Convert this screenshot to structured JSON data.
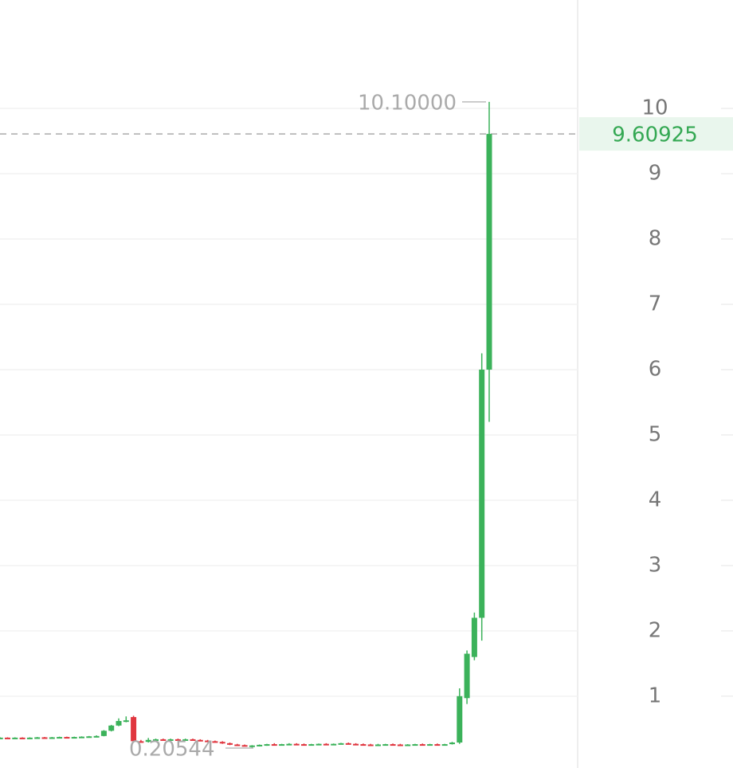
{
  "chart_data": {
    "type": "candlestick",
    "open": [
      0.36,
      0.365,
      0.36,
      0.365,
      0.36,
      0.365,
      0.37,
      0.365,
      0.37,
      0.375,
      0.37,
      0.375,
      0.38,
      0.385,
      0.39,
      0.47,
      0.55,
      0.62,
      0.68,
      0.31,
      0.3,
      0.33,
      0.34,
      0.33,
      0.34,
      0.335,
      0.34,
      0.33,
      0.32,
      0.31,
      0.3,
      0.28,
      0.26,
      0.25,
      0.24,
      0.245,
      0.255,
      0.265,
      0.26,
      0.265,
      0.27,
      0.265,
      0.26,
      0.265,
      0.27,
      0.265,
      0.27,
      0.28,
      0.27,
      0.265,
      0.26,
      0.255,
      0.26,
      0.265,
      0.26,
      0.255,
      0.26,
      0.265,
      0.26,
      0.265,
      0.26,
      0.265,
      0.29,
      0.97,
      1.6,
      2.2,
      6.0
    ],
    "high": [
      0.37,
      0.37,
      0.37,
      0.37,
      0.37,
      0.375,
      0.375,
      0.375,
      0.38,
      0.38,
      0.38,
      0.385,
      0.39,
      0.4,
      0.48,
      0.56,
      0.66,
      0.69,
      0.7,
      0.33,
      0.36,
      0.35,
      0.35,
      0.35,
      0.35,
      0.35,
      0.35,
      0.34,
      0.33,
      0.32,
      0.31,
      0.29,
      0.27,
      0.26,
      0.25,
      0.26,
      0.27,
      0.28,
      0.27,
      0.28,
      0.28,
      0.275,
      0.27,
      0.275,
      0.28,
      0.275,
      0.285,
      0.29,
      0.28,
      0.275,
      0.27,
      0.27,
      0.27,
      0.275,
      0.27,
      0.265,
      0.27,
      0.275,
      0.27,
      0.275,
      0.27,
      0.3,
      1.12,
      1.7,
      2.28,
      6.25,
      10.1
    ],
    "low": [
      0.355,
      0.355,
      0.355,
      0.36,
      0.355,
      0.36,
      0.36,
      0.36,
      0.365,
      0.37,
      0.365,
      0.37,
      0.375,
      0.38,
      0.385,
      0.46,
      0.54,
      0.6,
      0.3,
      0.29,
      0.29,
      0.32,
      0.32,
      0.32,
      0.33,
      0.32,
      0.33,
      0.31,
      0.3,
      0.29,
      0.27,
      0.25,
      0.24,
      0.23,
      0.20544,
      0.23,
      0.24,
      0.25,
      0.25,
      0.255,
      0.26,
      0.255,
      0.25,
      0.255,
      0.26,
      0.255,
      0.26,
      0.265,
      0.26,
      0.25,
      0.25,
      0.245,
      0.25,
      0.255,
      0.25,
      0.245,
      0.25,
      0.255,
      0.25,
      0.255,
      0.25,
      0.26,
      0.27,
      0.88,
      1.55,
      1.85,
      5.2
    ],
    "close": [
      0.365,
      0.36,
      0.365,
      0.36,
      0.365,
      0.37,
      0.365,
      0.37,
      0.375,
      0.37,
      0.375,
      0.38,
      0.385,
      0.39,
      0.47,
      0.55,
      0.62,
      0.63,
      0.31,
      0.3,
      0.33,
      0.34,
      0.33,
      0.34,
      0.335,
      0.34,
      0.33,
      0.32,
      0.31,
      0.3,
      0.28,
      0.26,
      0.25,
      0.24,
      0.245,
      0.255,
      0.265,
      0.26,
      0.265,
      0.27,
      0.265,
      0.26,
      0.265,
      0.27,
      0.265,
      0.27,
      0.28,
      0.27,
      0.265,
      0.26,
      0.255,
      0.26,
      0.265,
      0.26,
      0.255,
      0.26,
      0.265,
      0.26,
      0.265,
      0.26,
      0.265,
      0.29,
      1.0,
      1.65,
      2.2,
      6.0,
      9.60925
    ],
    "up_color": "#3bb25a",
    "down_color": "#e0363f",
    "ylim": [
      -0.1,
      11.66
    ],
    "yticks": [
      1,
      2,
      3,
      4,
      5,
      6,
      7,
      8,
      9,
      10
    ],
    "grid": true,
    "high_marker": {
      "value": 10.1,
      "label": "10.10000"
    },
    "low_marker": 0.20544,
    "last_price": 9.60925
  }
}
